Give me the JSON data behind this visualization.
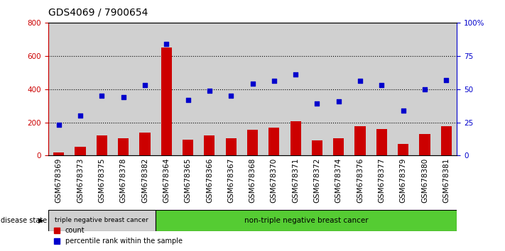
{
  "title": "GDS4069 / 7900654",
  "samples": [
    "GSM678369",
    "GSM678373",
    "GSM678375",
    "GSM678378",
    "GSM678382",
    "GSM678364",
    "GSM678365",
    "GSM678366",
    "GSM678367",
    "GSM678368",
    "GSM678370",
    "GSM678371",
    "GSM678372",
    "GSM678374",
    "GSM678376",
    "GSM678377",
    "GSM678379",
    "GSM678380",
    "GSM678381"
  ],
  "counts": [
    20,
    55,
    120,
    105,
    140,
    650,
    95,
    120,
    105,
    155,
    170,
    205,
    90,
    105,
    175,
    160,
    70,
    130,
    175
  ],
  "percentiles": [
    23,
    30,
    45,
    44,
    53,
    84,
    42,
    49,
    45,
    54,
    56,
    61,
    39,
    41,
    56,
    53,
    34,
    50,
    57
  ],
  "group1_count": 5,
  "group1_label": "triple negative breast cancer",
  "group2_label": "non-triple negative breast cancer",
  "bar_color": "#cc0000",
  "dot_color": "#0000cc",
  "left_axis_color": "#cc0000",
  "right_axis_color": "#0000cc",
  "ylim_left": [
    0,
    800
  ],
  "ylim_right": [
    0,
    100
  ],
  "left_yticks": [
    0,
    200,
    400,
    600,
    800
  ],
  "right_yticks": [
    0,
    25,
    50,
    75,
    100
  ],
  "right_yticklabels": [
    "0",
    "25",
    "50",
    "75",
    "100%"
  ],
  "col_bg_color": "#d0d0d0",
  "group1_bg": "#d0d0d0",
  "group2_bg": "#55cc33",
  "legend_count_label": "count",
  "legend_pct_label": "percentile rank within the sample",
  "disease_state_label": "disease state",
  "title_fontsize": 10,
  "tick_fontsize": 7.5
}
